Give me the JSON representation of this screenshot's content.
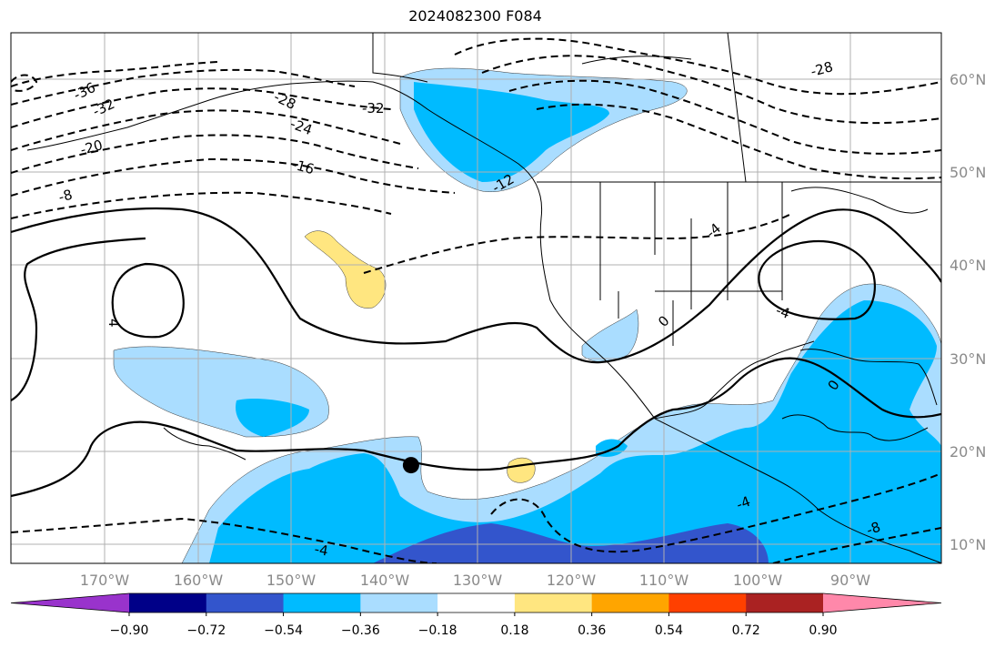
{
  "title": "2024082300 F084",
  "map": {
    "lon_range": [
      -180,
      -80
    ],
    "lat_range": [
      8,
      65
    ],
    "lon_ticks": [
      "170°W",
      "160°W",
      "150°W",
      "140°W",
      "130°W",
      "120°W",
      "110°W",
      "100°W",
      "90°W"
    ],
    "lat_ticks": [
      "10°N",
      "20°N",
      "30°N",
      "40°N",
      "50°N",
      "60°N"
    ],
    "contour_labels": [
      "-36",
      "-32",
      "-28",
      "-24",
      "-20",
      "-16",
      "-8",
      "-32",
      "-12",
      "-4",
      "4",
      "0",
      "-4",
      "0",
      "-4",
      "-8",
      "-28",
      "-4"
    ],
    "marker": {
      "name": "storm-position",
      "lon": -137,
      "lat": 18.5
    }
  },
  "colorbar": {
    "ticks": [
      "−0.90",
      "−0.72",
      "−0.54",
      "−0.36",
      "−0.18",
      "0.18",
      "0.36",
      "0.54",
      "0.72",
      "0.90"
    ],
    "colors": [
      "#9933cc",
      "#000088",
      "#3355cc",
      "#00bbff",
      "#aaddff",
      "#ffffff",
      "#ffe680",
      "#ffa500",
      "#ff4000",
      "#aa2222",
      "#ff88aa"
    ]
  }
}
